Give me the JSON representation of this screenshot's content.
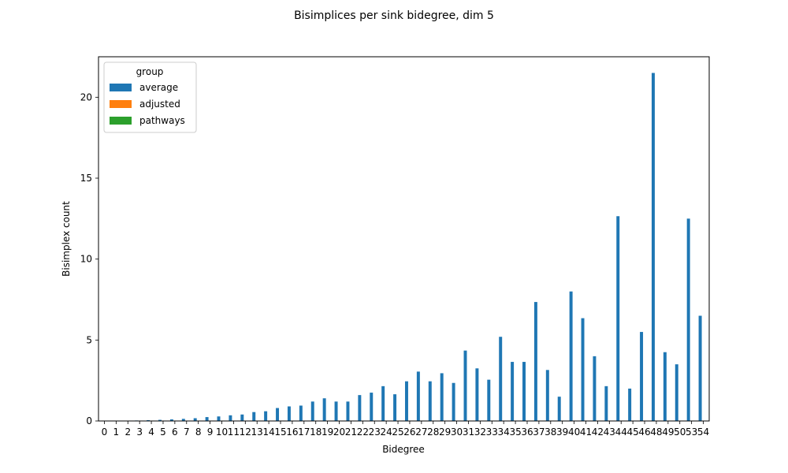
{
  "chart_data": {
    "type": "bar",
    "title": "Bisimplices per sink bidegree, dim 5",
    "xlabel": "Bidegree",
    "ylabel": "Bisimplex count",
    "ylim": [
      0,
      22.5
    ],
    "yticks": [
      0,
      5,
      10,
      15,
      20
    ],
    "grid": false,
    "legend": {
      "title": "group",
      "placement": "top-left"
    },
    "categories": [
      "0",
      "1",
      "2",
      "3",
      "4",
      "5",
      "6",
      "7",
      "8",
      "9",
      "10",
      "11",
      "12",
      "13",
      "14",
      "15",
      "16",
      "17",
      "18",
      "19",
      "20",
      "21",
      "22",
      "23",
      "24",
      "25",
      "26",
      "27",
      "28",
      "29",
      "30",
      "31",
      "32",
      "33",
      "34",
      "35",
      "36",
      "37",
      "38",
      "39",
      "40",
      "41",
      "42",
      "43",
      "44",
      "45",
      "46",
      "48",
      "49",
      "50",
      "53",
      "54"
    ],
    "series": [
      {
        "name": "average",
        "color": "#1f77b4",
        "values": [
          0,
          0,
          0.01,
          0.03,
          0.05,
          0.07,
          0.1,
          0.13,
          0.17,
          0.24,
          0.28,
          0.35,
          0.4,
          0.55,
          0.6,
          0.8,
          0.9,
          0.95,
          1.2,
          1.4,
          1.2,
          1.2,
          1.6,
          1.75,
          2.15,
          1.65,
          2.45,
          3.05,
          2.45,
          2.95,
          2.35,
          4.35,
          3.25,
          2.55,
          5.2,
          3.65,
          3.65,
          7.35,
          3.15,
          1.5,
          8.0,
          6.35,
          4.0,
          2.15,
          12.65,
          2.0,
          5.5,
          21.5,
          4.25,
          3.5,
          12.5,
          6.5
        ]
      },
      {
        "name": "adjusted",
        "color": "#ff7f0e",
        "values": [
          0,
          0,
          0,
          0,
          0,
          0,
          0,
          0,
          0,
          0,
          0,
          0,
          0,
          0,
          0,
          0,
          0,
          0,
          0,
          0,
          0,
          0,
          0,
          0,
          0,
          0,
          0,
          0,
          0,
          0,
          0,
          0,
          0,
          0,
          0,
          0,
          0,
          0,
          0,
          0,
          0,
          0,
          0,
          0,
          0,
          0,
          0,
          0,
          0,
          0,
          0,
          0
        ]
      },
      {
        "name": "pathways",
        "color": "#2ca02c",
        "values": [
          0,
          0,
          0,
          0,
          0,
          0,
          0,
          0,
          0,
          0,
          0,
          0,
          0,
          0,
          0,
          0,
          0,
          0,
          0,
          0,
          0,
          0,
          0,
          0,
          0,
          0,
          0,
          0,
          0,
          0,
          0,
          0,
          0,
          0,
          0,
          0,
          0,
          0,
          0,
          0,
          0,
          0,
          0,
          0,
          0,
          0,
          0,
          0,
          0,
          0,
          0,
          0
        ]
      }
    ]
  }
}
